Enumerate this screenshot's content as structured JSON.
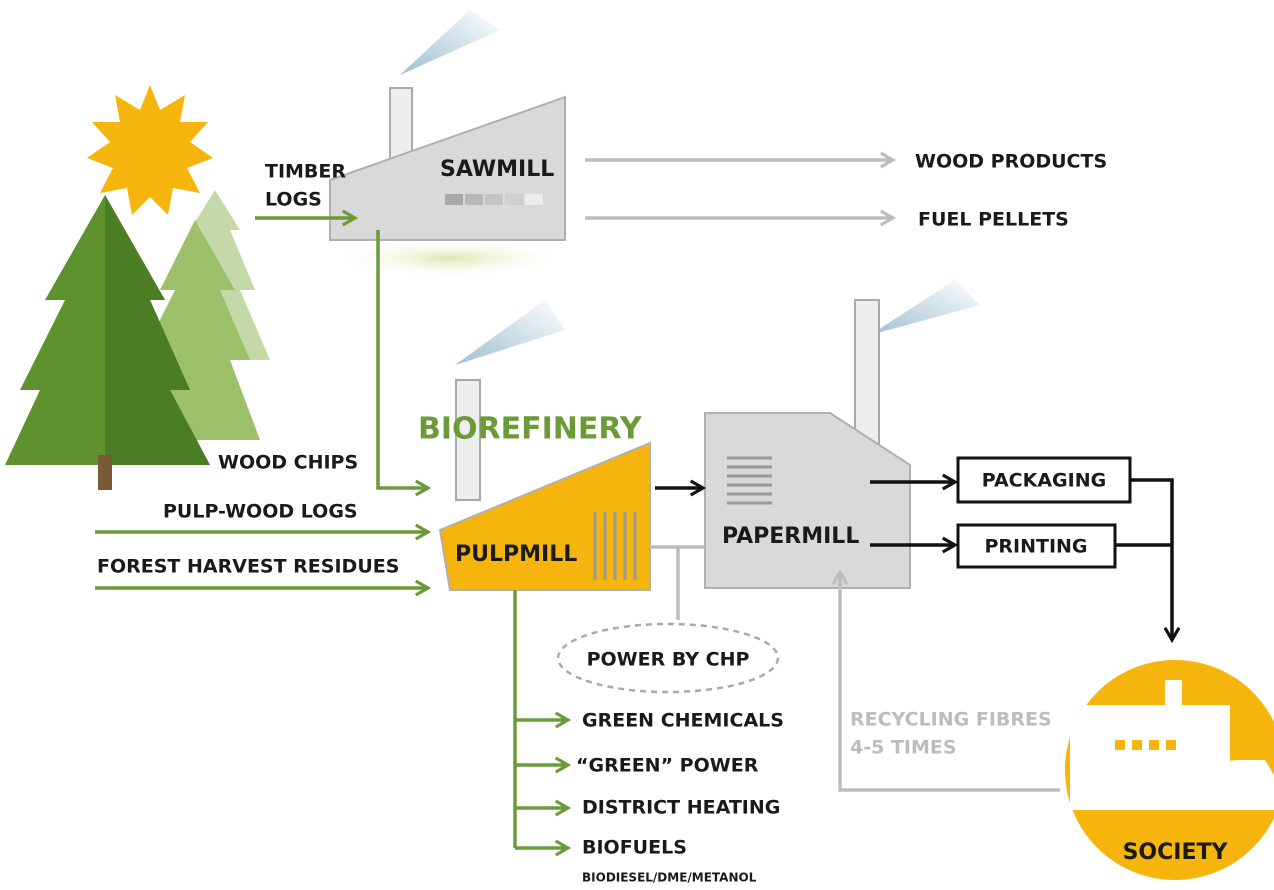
{
  "sawmill": {
    "label": "SAWMILL",
    "input": [
      "TIMBER",
      "LOGS"
    ],
    "outputs": [
      "WOOD PRODUCTS",
      "FUEL PELLETS"
    ]
  },
  "biorefinery": {
    "title": "BIOREFINERY",
    "inputs": [
      "WOOD CHIPS",
      "PULP-WOOD LOGS",
      "FOREST HARVEST RESIDUES"
    ],
    "pulpmill": "PULPMILL",
    "papermill": "PAPERMILL",
    "power": "POWER BY CHP",
    "outputs": [
      "GREEN CHEMICALS",
      "“GREEN” POWER",
      "DISTRICT HEATING",
      "BIOFUELS"
    ],
    "biofuels_note": "BIODIESEL/DME/METANOL"
  },
  "products": [
    "PACKAGING",
    "PRINTING"
  ],
  "recycling": [
    "RECYCLING FIBRES",
    "4-5 TIMES"
  ],
  "society": "SOCIETY"
}
